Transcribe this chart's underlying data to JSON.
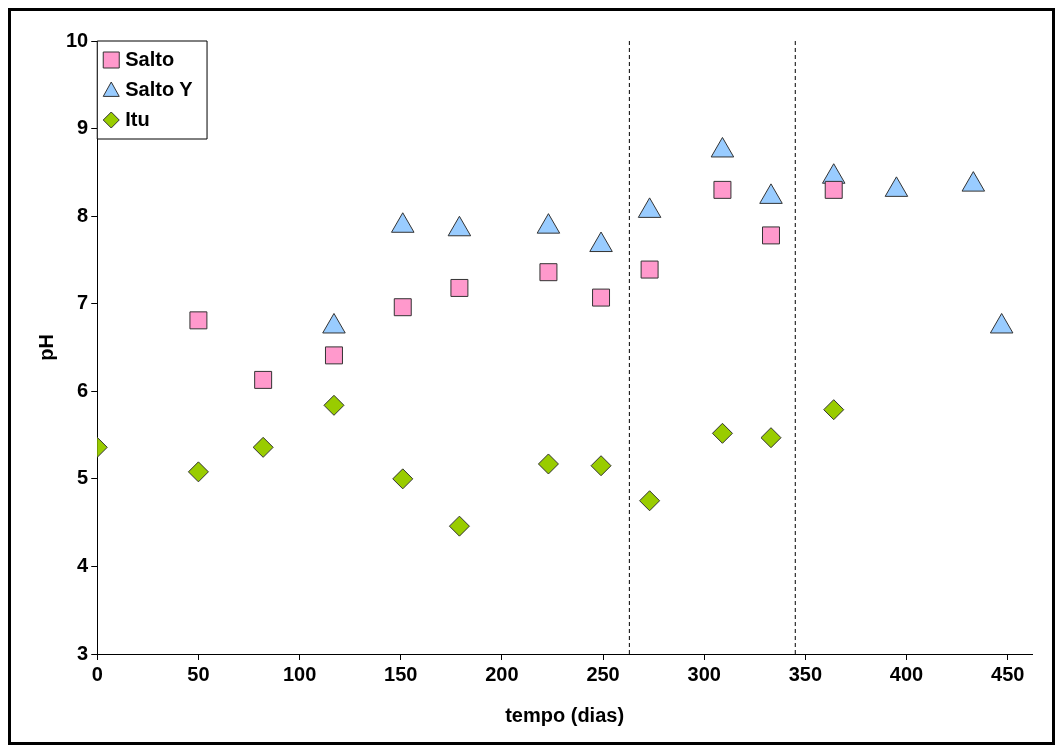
{
  "chart_data": {
    "type": "scatter",
    "xlabel": "tempo (dias)",
    "ylabel": "pH",
    "xlim": [
      0,
      462
    ],
    "xticks": [
      0,
      50,
      100,
      150,
      200,
      250,
      300,
      350,
      400,
      450
    ],
    "ylim": [
      3,
      10
    ],
    "yticks": [
      3,
      4,
      5,
      6,
      7,
      8,
      9,
      10
    ],
    "grid": false,
    "legend": "top left",
    "series": [
      {
        "name": "Salto",
        "color": "#ff99cc",
        "marker": "square",
        "x": [
          50,
          82,
          117,
          151,
          179,
          223,
          249,
          273,
          309,
          333,
          364
        ],
        "values": [
          6.81,
          6.13,
          6.41,
          6.96,
          7.18,
          7.36,
          7.07,
          7.39,
          8.3,
          7.78,
          8.3
        ]
      },
      {
        "name": "Salto Y",
        "color": "#99ccff",
        "marker": "triangle",
        "x": [
          117,
          151,
          179,
          223,
          249,
          273,
          309,
          333,
          364,
          395,
          433,
          447
        ],
        "values": [
          6.74,
          7.89,
          7.85,
          7.88,
          7.67,
          8.06,
          8.75,
          8.22,
          8.45,
          8.3,
          8.36,
          6.74
        ]
      },
      {
        "name": "Itu",
        "color": "#99cc00",
        "marker": "diamond",
        "x": [
          0,
          50,
          82,
          117,
          151,
          179,
          223,
          249,
          273,
          309,
          333,
          364
        ],
        "values": [
          5.36,
          5.08,
          5.36,
          5.84,
          5.0,
          4.46,
          5.17,
          5.15,
          4.75,
          5.52,
          5.47,
          5.79
        ]
      }
    ],
    "ref_lines": [
      {
        "axis": "x",
        "value": 263,
        "color": "#000000",
        "line_style": "dashed"
      },
      {
        "axis": "x",
        "value": 345,
        "color": "#000000",
        "line_style": "dashed"
      }
    ]
  }
}
